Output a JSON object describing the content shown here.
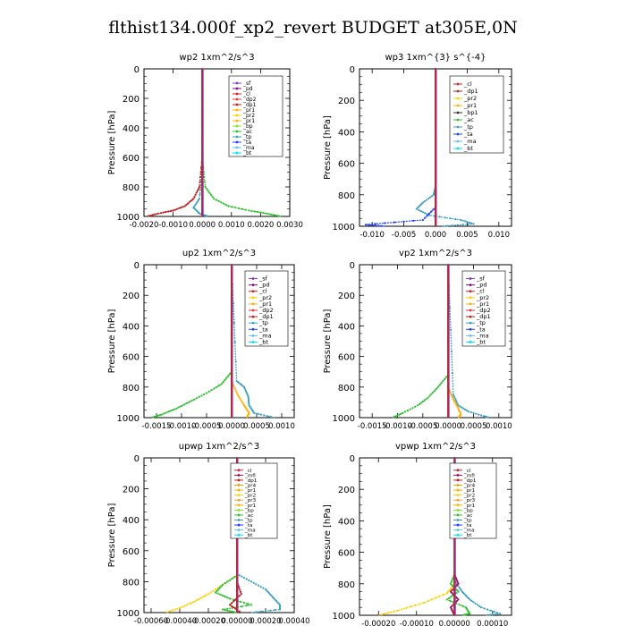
{
  "page": {
    "title": "flthist134.000f_xp2_revert  BUDGET at305E,0N"
  },
  "colors": {
    "sf": "#7f3fbf",
    "pd": "#7f0f7f",
    "cl": "#d01f2f",
    "mfl": "#a0105f",
    "dp1": "#c02020",
    "dp2": "#e03a3a",
    "pr1": "#ffb000",
    "pr2": "#ffd000",
    "pr3": "#f0a040",
    "pr4": "#e0a000",
    "bp": "#80e020",
    "ac": "#30c030",
    "tp": "#40a0c0",
    "ta": "#2040ff",
    "ma": "#60c0e0",
    "bt": "#00e0ff"
  },
  "chart_data": [
    {
      "type": "line",
      "title": "wp2   1xm^2/s^3",
      "ylabel": "Pressure  [hPa]",
      "ylim": [
        1000,
        0
      ],
      "yticks": [
        0,
        200,
        400,
        600,
        800,
        1000
      ],
      "xlim": [
        -0.002,
        0.003
      ],
      "xticks": [
        -0.002,
        -0.001,
        0.0,
        0.001,
        0.002,
        0.003
      ],
      "xticklabels": [
        "-0.0020",
        "-0.0010",
        "0.0000",
        "0.0010",
        "0.0020",
        "0.0030"
      ],
      "legend": [
        "_sf",
        "_pd",
        "_cl",
        "_dp2",
        "_dp1",
        "_pr1",
        "_pr2",
        "_pr1",
        "_bp",
        "_ac",
        "_tp",
        "_ta",
        "_ma",
        "_bt"
      ],
      "legend_position": "top-right",
      "series": [
        {
          "key": "dp1",
          "p": [
            0,
            600,
            800,
            880,
            930,
            960,
            980,
            1000
          ],
          "v": [
            0,
            0,
            -0.0001,
            -0.0003,
            -0.0006,
            -0.001,
            -0.0015,
            -0.0019
          ]
        },
        {
          "key": "ac",
          "p": [
            0,
            600,
            800,
            880,
            930,
            960,
            980,
            1000
          ],
          "v": [
            0,
            0,
            0.0001,
            0.0004,
            0.0009,
            0.0016,
            0.0022,
            0.0027
          ]
        },
        {
          "key": "tp",
          "p": [
            0,
            700,
            880,
            940,
            980,
            1000
          ],
          "v": [
            0,
            0,
            -0.0001,
            -0.0003,
            -0.0001,
            0.0002
          ]
        },
        {
          "key": "sf",
          "p": [
            0,
            1000
          ],
          "v": [
            0,
            0
          ]
        }
      ]
    },
    {
      "type": "line",
      "title": "wp3   1xm^{3} s^{-4}",
      "ylabel": "Pressure  [hPa]",
      "ylim": [
        1000,
        0
      ],
      "yticks": [
        0,
        200,
        400,
        600,
        800,
        1000
      ],
      "xlim": [
        -0.012,
        0.012
      ],
      "xticks": [
        -0.01,
        -0.005,
        0.0,
        0.005,
        0.01
      ],
      "xticklabels": [
        "-0.010",
        "-0.005",
        "0.000",
        "0.005",
        "0.010"
      ],
      "legend": [
        "_cl",
        "_dp1",
        "_pr2",
        "_pr1",
        "_bp1",
        "_ac",
        "_tp",
        "_ta",
        "_ma",
        "_bt"
      ],
      "legend_position": "top-right",
      "series": [
        {
          "key": "tp",
          "p": [
            0,
            750,
            800,
            850,
            890,
            930,
            960,
            985,
            1000
          ],
          "v": [
            0,
            0,
            -0.0003,
            -0.002,
            -0.003,
            -0.001,
            0.004,
            0.006,
            0.001
          ]
        },
        {
          "key": "ta",
          "p": [
            0,
            880,
            960,
            990,
            1000
          ],
          "v": [
            0,
            0,
            -0.002,
            -0.011,
            -0.008
          ]
        },
        {
          "key": "cl",
          "p": [
            0,
            1000
          ],
          "v": [
            0,
            0
          ]
        }
      ]
    },
    {
      "type": "line",
      "title": "up2   1xm^2/s^3",
      "ylabel": "Pressure  [hPa]",
      "ylim": [
        1000,
        0
      ],
      "yticks": [
        0,
        200,
        400,
        600,
        800,
        1000
      ],
      "xlim": [
        -0.00175,
        0.00125
      ],
      "xticks": [
        -0.0015,
        -0.001,
        -0.0005,
        0.0,
        0.0005,
        0.001
      ],
      "xticklabels": [
        "-0.0015",
        "-0.0010",
        "-0.0005",
        "0.0000",
        "0.0005",
        "0.0010"
      ],
      "legend": [
        "_sf",
        "_pd",
        "_cl",
        "_pr2",
        "_pr1",
        "_dp2",
        "_dp1",
        "_tp",
        "_ta",
        "_ma",
        "_bt"
      ],
      "legend_position": "top-right",
      "series": [
        {
          "key": "ac",
          "p": [
            0,
            700,
            780,
            840,
            890,
            940,
            980,
            1000
          ],
          "v": [
            0,
            0,
            -0.0002,
            -0.0005,
            -0.0008,
            -0.0011,
            -0.0014,
            -0.0016
          ]
        },
        {
          "key": "tp",
          "p": [
            0,
            760,
            800,
            860,
            920,
            970,
            1000
          ],
          "v": [
            0,
            0.0001,
            0.00025,
            0.00033,
            0.00035,
            0.00045,
            0.00085
          ]
        },
        {
          "key": "pr1",
          "p": [
            0,
            760,
            850,
            920,
            970,
            1000
          ],
          "v": [
            0,
            0,
            0.00012,
            0.00025,
            0.00035,
            0.0003
          ]
        },
        {
          "key": "sf",
          "p": [
            0,
            1000
          ],
          "v": [
            0,
            0
          ]
        }
      ]
    },
    {
      "type": "line",
      "title": "vp2   1xm^2/s^3",
      "ylabel": "Pressure  [hPa]",
      "ylim": [
        1000,
        0
      ],
      "yticks": [
        0,
        200,
        400,
        600,
        800,
        1000
      ],
      "xlim": [
        -0.00175,
        0.00125
      ],
      "xticks": [
        -0.0015,
        -0.001,
        -0.0005,
        0.0,
        0.0005,
        0.001
      ],
      "xticklabels": [
        "-0.0015",
        "-0.0010",
        "-0.0005",
        "0.0000",
        "0.0005",
        "0.0010"
      ],
      "legend": [
        "_sf",
        "_pd",
        "_cl",
        "_pr2",
        "_pr1",
        "_dp2",
        "_dp1",
        "_tp",
        "_ta",
        "_ma",
        "_bt"
      ],
      "legend_position": "top-right",
      "series": [
        {
          "key": "ac",
          "p": [
            0,
            720,
            800,
            870,
            920,
            970,
            1000
          ],
          "v": [
            0,
            0,
            -0.0002,
            -0.0004,
            -0.0006,
            -0.0009,
            -0.0011
          ]
        },
        {
          "key": "pr1",
          "p": [
            0,
            800,
            880,
            940,
            980,
            1000
          ],
          "v": [
            0,
            0,
            0.0001,
            0.0002,
            0.00025,
            0.0002
          ]
        },
        {
          "key": "tp",
          "p": [
            0,
            850,
            920,
            960,
            990,
            1000
          ],
          "v": [
            0,
            0.0001,
            0.0002,
            0.0004,
            0.0007,
            0.0008
          ]
        },
        {
          "key": "sf",
          "p": [
            0,
            1000
          ],
          "v": [
            0,
            0
          ]
        }
      ]
    },
    {
      "type": "line",
      "title": "upwp   1xm^2/s^3",
      "ylabel": "Pressure  [hPa]",
      "ylim": [
        1000,
        0
      ],
      "yticks": [
        0,
        200,
        400,
        600,
        800,
        1000
      ],
      "xlim": [
        -0.00065,
        0.0004
      ],
      "xticks": [
        -0.0006,
        -0.0004,
        -0.0002,
        0.0,
        0.0002,
        0.0004
      ],
      "xticklabels": [
        "-0.00060",
        "-0.00040",
        "-0.00020",
        "0.00000",
        "0.00020",
        "0.00040"
      ],
      "legend": [
        "_cl",
        "_mfl",
        "_dp1",
        "_pr4",
        "_pr1",
        "_pr2",
        "_pr3",
        "_pr1",
        "_bp",
        "_ac",
        "_tp",
        "_ta",
        "_ma",
        "_bt"
      ],
      "legend_position": "top-right",
      "series": [
        {
          "key": "pr2",
          "p": [
            0,
            760,
            820,
            880,
            930,
            970,
            1000
          ],
          "v": [
            0,
            0,
            -0.0001,
            -0.0002,
            -0.0003,
            -0.0004,
            -0.0005
          ]
        },
        {
          "key": "ac",
          "p": [
            0,
            760,
            820,
            870,
            910,
            950,
            980,
            1000
          ],
          "v": [
            0,
            0,
            -0.0001,
            -0.00015,
            -5e-05,
            0.0001,
            -0.0001,
            0
          ]
        },
        {
          "key": "tp",
          "p": [
            0,
            750,
            800,
            850,
            900,
            950,
            980,
            1000
          ],
          "v": [
            0,
            0,
            0.0001,
            0.0002,
            0.00025,
            0.0003,
            0.0003,
            0.0001
          ]
        },
        {
          "key": "dp1",
          "p": [
            0,
            800,
            880,
            950,
            1000
          ],
          "v": [
            0,
            0,
            3e-05,
            -5e-05,
            3e-05
          ]
        },
        {
          "key": "sf",
          "p": [
            0,
            1000
          ],
          "v": [
            0,
            0
          ]
        }
      ]
    },
    {
      "type": "line",
      "title": "vpwp   1xm^2/s^3",
      "ylabel": "Pressure  [hPa]",
      "ylim": [
        1000,
        0
      ],
      "yticks": [
        0,
        200,
        400,
        600,
        800,
        1000
      ],
      "xlim": [
        -0.00025,
        0.00015
      ],
      "xticks": [
        -0.0002,
        -0.0001,
        0.0,
        0.0001
      ],
      "xticklabels": [
        "-0.00020",
        "-0.00010",
        "0.00000",
        "0.00010"
      ],
      "legend": [
        "_cl",
        "_mfl",
        "_dp1",
        "_pr4",
        "_pr1",
        "_pr2",
        "_pr3",
        "_pr1",
        "_bp",
        "_ac",
        "_tp",
        "_ta",
        "_ma",
        "_bt"
      ],
      "legend_position": "top-right",
      "series": [
        {
          "key": "pr2",
          "p": [
            0,
            800,
            860,
            920,
            970,
            1000
          ],
          "v": [
            0,
            0,
            -2e-05,
            -8e-05,
            -0.00015,
            -0.0002
          ]
        },
        {
          "key": "ac",
          "p": [
            0,
            740,
            800,
            850,
            900,
            950,
            990,
            1000
          ],
          "v": [
            0,
            0,
            -1e-05,
            1e-05,
            -2e-05,
            3e-05,
            4e-05,
            2e-05
          ]
        },
        {
          "key": "tp",
          "p": [
            0,
            780,
            850,
            900,
            950,
            990,
            1000
          ],
          "v": [
            0,
            0,
            2e-05,
            4e-05,
            7e-05,
            0.00012,
            8e-05
          ]
        },
        {
          "key": "mfl",
          "p": [
            0,
            740,
            800,
            850,
            900,
            950,
            1000
          ],
          "v": [
            0,
            0,
            1e-05,
            -1e-05,
            1e-05,
            -1e-05,
            0
          ]
        },
        {
          "key": "sf",
          "p": [
            0,
            1000
          ],
          "v": [
            0,
            0
          ]
        }
      ]
    }
  ]
}
